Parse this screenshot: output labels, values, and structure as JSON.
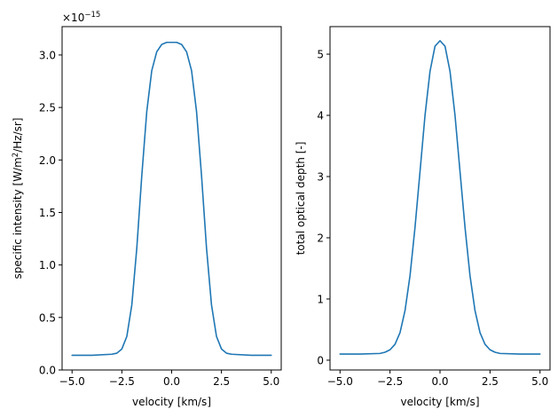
{
  "chart_data": [
    {
      "type": "line",
      "xlabel": "velocity [km/s]",
      "ylabel_main": "specific intensity [W/m",
      "ylabel_sup": "2",
      "ylabel_tail": "/Hz/sr]",
      "offset_text_base": "×10",
      "offset_text_exp": "−15",
      "xlim": [
        -5.5,
        5.5
      ],
      "ylim": [
        0.0,
        3.27
      ],
      "xticks": [
        -5.0,
        -2.5,
        0.0,
        2.5,
        5.0
      ],
      "xtick_labels": [
        "−5.0",
        "−2.5",
        "0.0",
        "2.5",
        "5.0"
      ],
      "yticks": [
        0.0,
        0.5,
        1.0,
        1.5,
        2.0,
        2.5,
        3.0
      ],
      "ytick_labels": [
        "0.0",
        "0.5",
        "1.0",
        "1.5",
        "2.0",
        "2.5",
        "3.0"
      ],
      "color": "#1f77b4",
      "series": [
        {
          "x": [
            -5.0,
            -4.0,
            -3.0,
            -2.75,
            -2.5,
            -2.25,
            -2.0,
            -1.75,
            -1.5,
            -1.25,
            -1.0,
            -0.75,
            -0.5,
            -0.25,
            0.0,
            0.25,
            0.5,
            0.75,
            1.0,
            1.25,
            1.5,
            1.75,
            2.0,
            2.25,
            2.5,
            2.75,
            3.0,
            4.0,
            5.0
          ],
          "y": [
            0.14,
            0.14,
            0.15,
            0.16,
            0.2,
            0.32,
            0.62,
            1.16,
            1.85,
            2.46,
            2.85,
            3.03,
            3.1,
            3.12,
            3.12,
            3.12,
            3.1,
            3.03,
            2.85,
            2.46,
            1.85,
            1.16,
            0.62,
            0.32,
            0.2,
            0.16,
            0.15,
            0.14,
            0.14
          ]
        }
      ]
    },
    {
      "type": "line",
      "xlabel": "velocity [km/s]",
      "ylabel": "total optical depth [-]",
      "xlim": [
        -5.5,
        5.5
      ],
      "ylim": [
        -0.16,
        5.45
      ],
      "xticks": [
        -5.0,
        -2.5,
        0.0,
        2.5,
        5.0
      ],
      "xtick_labels": [
        "−5.0",
        "−2.5",
        "0.0",
        "2.5",
        "5.0"
      ],
      "yticks": [
        0,
        1,
        2,
        3,
        4,
        5
      ],
      "ytick_labels": [
        "0",
        "1",
        "2",
        "3",
        "4",
        "5"
      ],
      "color": "#1f77b4",
      "series": [
        {
          "x": [
            -5.0,
            -4.0,
            -3.0,
            -2.75,
            -2.5,
            -2.25,
            -2.0,
            -1.75,
            -1.5,
            -1.25,
            -1.0,
            -0.75,
            -0.5,
            -0.25,
            0.0,
            0.25,
            0.5,
            0.75,
            1.0,
            1.25,
            1.5,
            1.75,
            2.0,
            2.25,
            2.5,
            2.75,
            3.0,
            4.0,
            5.0
          ],
          "y": [
            0.1,
            0.1,
            0.11,
            0.13,
            0.17,
            0.26,
            0.45,
            0.81,
            1.38,
            2.17,
            3.08,
            4.0,
            4.72,
            5.13,
            5.22,
            5.13,
            4.72,
            4.0,
            3.08,
            2.17,
            1.38,
            0.81,
            0.45,
            0.26,
            0.17,
            0.13,
            0.11,
            0.1,
            0.1
          ]
        }
      ]
    }
  ]
}
